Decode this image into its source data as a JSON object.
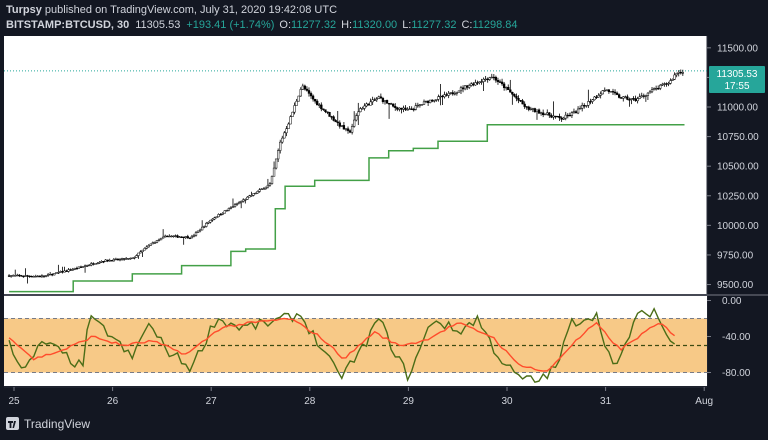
{
  "header": {
    "line1_prefix": "Turpsy",
    "line1_rest": " published on TradingView.com, July 31, 2020 19:42:08 UTC",
    "symbol": "BITSTAMP:BTCUSD, 30",
    "last": "11305.53",
    "change": "+193.41 (+1.74%)",
    "o_label": "O:",
    "o_value": "11277.32",
    "h_label": "H:",
    "h_value": "11320.00",
    "l_label": "L:",
    "l_value": "11277.32",
    "c_label": "C:",
    "c_value": "11298.84"
  },
  "price_label": {
    "value": "11305.53",
    "countdown": "17:55"
  },
  "footer": {
    "brand": "TradingView"
  },
  "colors": {
    "background": "#131722",
    "candle": "#000000",
    "stop_line": "#43a047",
    "price_line": "#26a69a",
    "up_text": "#26a69a",
    "osc_main": "#4b6d17",
    "osc_signal": "#ff4c2b",
    "band_fill": "#f7c987"
  },
  "chart_data": [
    {
      "type": "line",
      "subtype": "candlestick",
      "timeframe": "30",
      "x_ticks": [
        "25",
        "26",
        "27",
        "28",
        "29",
        "30",
        "31",
        "Aug"
      ],
      "y_ticks": [
        9500,
        9750,
        10000,
        10250,
        10500,
        10750,
        11000,
        11250,
        11500
      ],
      "y_tick_labels": [
        "9500.00",
        "9750.00",
        "10000.00",
        "10250.00",
        "10500.00",
        "10750.00",
        "11000.00",
        "11250.00",
        "11500.00"
      ],
      "ylim": [
        9420,
        11600
      ],
      "last_price": 11305.53,
      "close_path": [
        {
          "day": 24.95,
          "price": 9575
        },
        {
          "day": 25.3,
          "price": 9570
        },
        {
          "day": 25.6,
          "price": 9630
        },
        {
          "day": 25.9,
          "price": 9700
        },
        {
          "day": 26.2,
          "price": 9720
        },
        {
          "day": 26.4,
          "price": 9850
        },
        {
          "day": 26.55,
          "price": 9910
        },
        {
          "day": 26.8,
          "price": 9900
        },
        {
          "day": 27.0,
          "price": 10050
        },
        {
          "day": 27.2,
          "price": 10150
        },
        {
          "day": 27.4,
          "price": 10250
        },
        {
          "day": 27.6,
          "price": 10350
        },
        {
          "day": 27.7,
          "price": 10700
        },
        {
          "day": 27.8,
          "price": 10900
        },
        {
          "day": 27.92,
          "price": 11180
        },
        {
          "day": 28.05,
          "price": 11050
        },
        {
          "day": 28.2,
          "price": 10930
        },
        {
          "day": 28.3,
          "price": 10850
        },
        {
          "day": 28.4,
          "price": 10780
        },
        {
          "day": 28.5,
          "price": 10980
        },
        {
          "day": 28.7,
          "price": 11080
        },
        {
          "day": 28.85,
          "price": 11000
        },
        {
          "day": 29.0,
          "price": 10970
        },
        {
          "day": 29.2,
          "price": 11050
        },
        {
          "day": 29.4,
          "price": 11100
        },
        {
          "day": 29.6,
          "price": 11180
        },
        {
          "day": 29.85,
          "price": 11260
        },
        {
          "day": 30.0,
          "price": 11150
        },
        {
          "day": 30.2,
          "price": 10990
        },
        {
          "day": 30.4,
          "price": 10940
        },
        {
          "day": 30.55,
          "price": 10900
        },
        {
          "day": 30.7,
          "price": 10960
        },
        {
          "day": 30.9,
          "price": 11090
        },
        {
          "day": 31.0,
          "price": 11150
        },
        {
          "day": 31.15,
          "price": 11080
        },
        {
          "day": 31.3,
          "price": 11060
        },
        {
          "day": 31.5,
          "price": 11150
        },
        {
          "day": 31.65,
          "price": 11210
        },
        {
          "day": 31.72,
          "price": 11290
        },
        {
          "day": 31.8,
          "price": 11305
        }
      ],
      "stop_line": [
        {
          "day": 24.95,
          "price": 9440
        },
        {
          "day": 25.6,
          "price": 9440
        },
        {
          "day": 25.6,
          "price": 9530
        },
        {
          "day": 26.2,
          "price": 9530
        },
        {
          "day": 26.2,
          "price": 9590
        },
        {
          "day": 26.7,
          "price": 9590
        },
        {
          "day": 26.7,
          "price": 9660
        },
        {
          "day": 27.2,
          "price": 9660
        },
        {
          "day": 27.2,
          "price": 9780
        },
        {
          "day": 27.35,
          "price": 9780
        },
        {
          "day": 27.35,
          "price": 9800
        },
        {
          "day": 27.65,
          "price": 9800
        },
        {
          "day": 27.65,
          "price": 10140
        },
        {
          "day": 27.75,
          "price": 10140
        },
        {
          "day": 27.75,
          "price": 10330
        },
        {
          "day": 28.05,
          "price": 10330
        },
        {
          "day": 28.05,
          "price": 10380
        },
        {
          "day": 28.6,
          "price": 10380
        },
        {
          "day": 28.6,
          "price": 10570
        },
        {
          "day": 28.8,
          "price": 10570
        },
        {
          "day": 28.8,
          "price": 10630
        },
        {
          "day": 29.05,
          "price": 10630
        },
        {
          "day": 29.05,
          "price": 10650
        },
        {
          "day": 29.3,
          "price": 10650
        },
        {
          "day": 29.3,
          "price": 10710
        },
        {
          "day": 29.8,
          "price": 10710
        },
        {
          "day": 29.8,
          "price": 10850
        },
        {
          "day": 31.8,
          "price": 10850
        }
      ]
    },
    {
      "type": "line",
      "subtype": "oscillator",
      "y_ticks": [
        0,
        -40,
        -80
      ],
      "y_tick_labels": [
        "0.00",
        "-40.00",
        "-80.00"
      ],
      "ylim": [
        -95,
        5
      ],
      "band": [
        -20,
        -80
      ],
      "midline": -50,
      "main_path": [
        {
          "day": 24.95,
          "price": -45
        },
        {
          "day": 25.1,
          "price": -80
        },
        {
          "day": 25.3,
          "price": -45
        },
        {
          "day": 25.5,
          "price": -60
        },
        {
          "day": 25.7,
          "price": -75
        },
        {
          "day": 25.75,
          "price": -20
        },
        {
          "day": 25.95,
          "price": -35
        },
        {
          "day": 26.2,
          "price": -65
        },
        {
          "day": 26.35,
          "price": -25
        },
        {
          "day": 26.55,
          "price": -55
        },
        {
          "day": 26.8,
          "price": -75
        },
        {
          "day": 27.05,
          "price": -20
        },
        {
          "day": 27.3,
          "price": -30
        },
        {
          "day": 27.6,
          "price": -25
        },
        {
          "day": 27.9,
          "price": -15
        },
        {
          "day": 28.1,
          "price": -50
        },
        {
          "day": 28.3,
          "price": -85
        },
        {
          "day": 28.5,
          "price": -60
        },
        {
          "day": 28.7,
          "price": -20
        },
        {
          "day": 28.85,
          "price": -55
        },
        {
          "day": 29.0,
          "price": -85
        },
        {
          "day": 29.25,
          "price": -20
        },
        {
          "day": 29.5,
          "price": -35
        },
        {
          "day": 29.7,
          "price": -20
        },
        {
          "day": 29.9,
          "price": -60
        },
        {
          "day": 30.1,
          "price": -85
        },
        {
          "day": 30.3,
          "price": -90
        },
        {
          "day": 30.5,
          "price": -75
        },
        {
          "day": 30.65,
          "price": -25
        },
        {
          "day": 30.9,
          "price": -15
        },
        {
          "day": 31.1,
          "price": -80
        },
        {
          "day": 31.3,
          "price": -20
        },
        {
          "day": 31.5,
          "price": -10
        },
        {
          "day": 31.6,
          "price": -35
        },
        {
          "day": 31.72,
          "price": -55
        }
      ],
      "signal_path": [
        {
          "day": 24.95,
          "price": -40
        },
        {
          "day": 25.2,
          "price": -65
        },
        {
          "day": 25.5,
          "price": -55
        },
        {
          "day": 25.8,
          "price": -40
        },
        {
          "day": 26.1,
          "price": -50
        },
        {
          "day": 26.4,
          "price": -45
        },
        {
          "day": 26.75,
          "price": -60
        },
        {
          "day": 27.1,
          "price": -30
        },
        {
          "day": 27.4,
          "price": -25
        },
        {
          "day": 27.8,
          "price": -20
        },
        {
          "day": 28.1,
          "price": -40
        },
        {
          "day": 28.35,
          "price": -65
        },
        {
          "day": 28.65,
          "price": -35
        },
        {
          "day": 28.9,
          "price": -50
        },
        {
          "day": 29.15,
          "price": -45
        },
        {
          "day": 29.5,
          "price": -25
        },
        {
          "day": 29.85,
          "price": -40
        },
        {
          "day": 30.1,
          "price": -70
        },
        {
          "day": 30.4,
          "price": -80
        },
        {
          "day": 30.65,
          "price": -50
        },
        {
          "day": 30.9,
          "price": -25
        },
        {
          "day": 31.15,
          "price": -55
        },
        {
          "day": 31.4,
          "price": -35
        },
        {
          "day": 31.55,
          "price": -25
        },
        {
          "day": 31.72,
          "price": -40
        }
      ]
    }
  ]
}
